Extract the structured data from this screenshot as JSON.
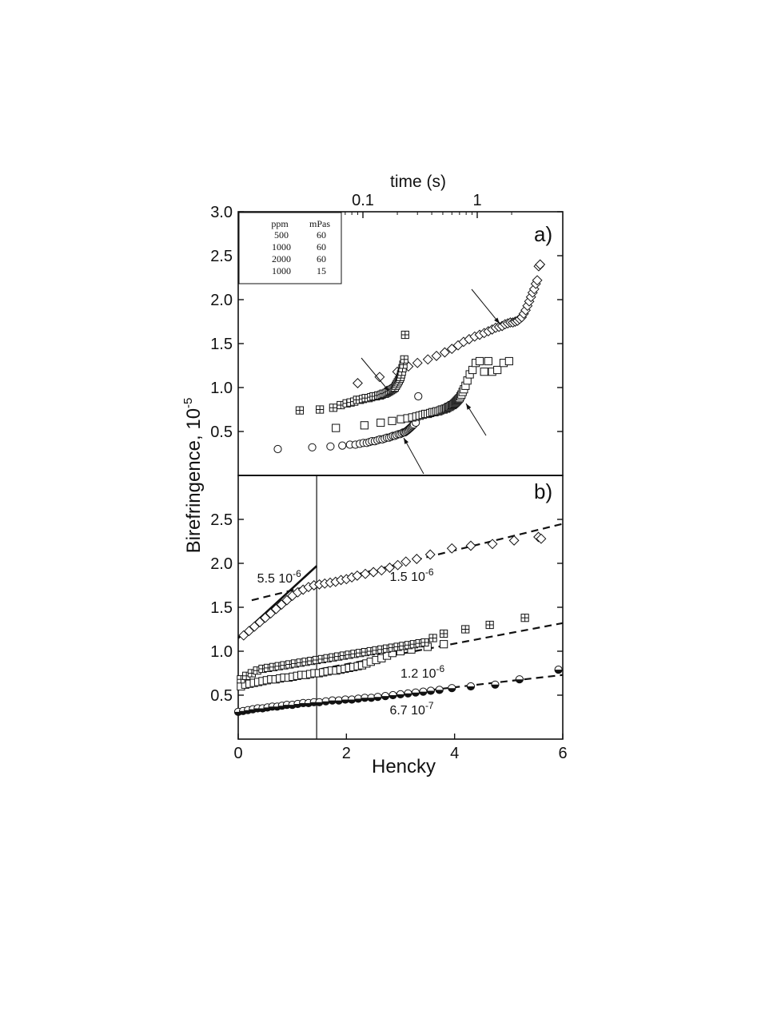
{
  "chart_data": [
    {
      "panel": "a",
      "type": "scatter",
      "panel_label": "a)",
      "top_axis": {
        "label": "time (s)",
        "scale": "log",
        "ticks": [
          {
            "value": 0.1,
            "label": "0.1"
          },
          {
            "value": 1,
            "label": "1"
          }
        ]
      },
      "ylabel": "Birefringence, 10",
      "ylabel_sup": "-5",
      "ylim": [
        0,
        3.0
      ],
      "yticks": [
        {
          "value": 0.5,
          "label": "0.5"
        },
        {
          "value": 1.0,
          "label": "1.0"
        },
        {
          "value": 1.5,
          "label": "1.5"
        },
        {
          "value": 2.0,
          "label": "2.0"
        },
        {
          "value": 2.5,
          "label": "2.5"
        },
        {
          "value": 3.0,
          "label": "3.0"
        }
      ],
      "legend": {
        "placement": "top-left",
        "headers": [
          "ppm",
          "mPas"
        ],
        "entries": [
          {
            "marker": "circle",
            "ppm": "500",
            "mpas": "60"
          },
          {
            "marker": "square",
            "ppm": "1000",
            "mpas": "60"
          },
          {
            "marker": "diamond",
            "ppm": "2000",
            "mpas": "60"
          },
          {
            "marker": "crossed-square",
            "ppm": "1000",
            "mpas": "15"
          }
        ]
      },
      "series": [
        {
          "marker": "circle",
          "x": [
            0.018,
            0.036,
            0.052,
            0.066,
            0.077,
            0.086,
            0.094,
            0.101,
            0.108,
            0.114,
            0.12,
            0.127,
            0.134,
            0.141,
            0.148,
            0.155,
            0.162,
            0.169,
            0.176,
            0.183,
            0.19,
            0.197,
            0.205,
            0.212,
            0.219,
            0.226,
            0.232,
            0.238,
            0.244,
            0.249,
            0.254,
            0.259,
            0.264,
            0.269,
            0.274,
            0.279,
            0.29,
            0.305
          ],
          "y": [
            0.3,
            0.32,
            0.33,
            0.34,
            0.35,
            0.35,
            0.36,
            0.37,
            0.37,
            0.38,
            0.39,
            0.39,
            0.4,
            0.41,
            0.41,
            0.42,
            0.43,
            0.43,
            0.44,
            0.45,
            0.45,
            0.46,
            0.47,
            0.47,
            0.48,
            0.49,
            0.49,
            0.5,
            0.51,
            0.52,
            0.53,
            0.54,
            0.55,
            0.56,
            0.57,
            0.58,
            0.6,
            0.9
          ]
        },
        {
          "marker": "square",
          "x": [
            0.058,
            0.103,
            0.143,
            0.18,
            0.215,
            0.245,
            0.27,
            0.293,
            0.313,
            0.333,
            0.352,
            0.37,
            0.388,
            0.406,
            0.423,
            0.44,
            0.457,
            0.474,
            0.491,
            0.507,
            0.522,
            0.535,
            0.548,
            0.56,
            0.572,
            0.584,
            0.596,
            0.608,
            0.62,
            0.632,
            0.644,
            0.655,
            0.666,
            0.677,
            0.688,
            0.7,
            0.713,
            0.728,
            0.745,
            0.765,
            0.79,
            0.82,
            0.86,
            0.91,
            0.97,
            1.05,
            1.15,
            1.25,
            1.35,
            1.5,
            1.7,
            1.9
          ],
          "y": [
            0.54,
            0.57,
            0.6,
            0.62,
            0.64,
            0.65,
            0.66,
            0.67,
            0.68,
            0.69,
            0.7,
            0.7,
            0.71,
            0.72,
            0.72,
            0.73,
            0.73,
            0.74,
            0.75,
            0.75,
            0.76,
            0.76,
            0.77,
            0.78,
            0.78,
            0.79,
            0.8,
            0.8,
            0.81,
            0.82,
            0.83,
            0.84,
            0.85,
            0.86,
            0.87,
            0.88,
            0.9,
            0.92,
            0.95,
            0.98,
            1.02,
            1.08,
            1.15,
            1.2,
            1.28,
            1.3,
            1.18,
            1.3,
            1.18,
            1.2,
            1.28,
            1.3
          ]
        },
        {
          "marker": "diamond",
          "x": [
            0.09,
            0.14,
            0.2,
            0.25,
            0.3,
            0.37,
            0.44,
            0.52,
            0.6,
            0.68,
            0.76,
            0.85,
            0.95,
            1.05,
            1.15,
            1.25,
            1.35,
            1.45,
            1.55,
            1.65,
            1.75,
            1.85,
            1.95,
            2.05,
            2.15,
            2.25,
            2.35,
            2.45,
            2.55,
            2.65,
            2.75,
            2.85,
            2.95,
            3.05,
            3.15,
            3.25,
            3.35,
            3.45,
            3.55
          ],
          "y": [
            1.05,
            1.12,
            1.18,
            1.24,
            1.28,
            1.32,
            1.36,
            1.4,
            1.44,
            1.48,
            1.52,
            1.55,
            1.58,
            1.6,
            1.62,
            1.64,
            1.66,
            1.68,
            1.69,
            1.7,
            1.72,
            1.73,
            1.74,
            1.74,
            1.75,
            1.76,
            1.78,
            1.8,
            1.84,
            1.88,
            1.93,
            1.98,
            2.03,
            2.08,
            2.12,
            2.18,
            2.22,
            2.38,
            2.4
          ]
        },
        {
          "marker": "crossed-square",
          "x": [
            0.028,
            0.042,
            0.055,
            0.064,
            0.072,
            0.078,
            0.084,
            0.089,
            0.094,
            0.1,
            0.106,
            0.112,
            0.118,
            0.124,
            0.13,
            0.136,
            0.141,
            0.146,
            0.151,
            0.156,
            0.161,
            0.166,
            0.171,
            0.176,
            0.181,
            0.186,
            0.19,
            0.194,
            0.198,
            0.202,
            0.206,
            0.21,
            0.213,
            0.216,
            0.219,
            0.222,
            0.226,
            0.23,
            0.234
          ],
          "y": [
            0.74,
            0.75,
            0.77,
            0.8,
            0.82,
            0.83,
            0.84,
            0.86,
            0.86,
            0.87,
            0.88,
            0.88,
            0.89,
            0.9,
            0.9,
            0.91,
            0.91,
            0.92,
            0.93,
            0.93,
            0.94,
            0.95,
            0.96,
            0.97,
            0.98,
            0.99,
            1.0,
            1.02,
            1.04,
            1.06,
            1.08,
            1.1,
            1.12,
            1.15,
            1.18,
            1.22,
            1.26,
            1.32,
            1.6
          ]
        }
      ]
    },
    {
      "panel": "b",
      "type": "scatter",
      "panel_label": "b)",
      "xlabel": "Hencky",
      "xlim": [
        0,
        6
      ],
      "xticks": [
        {
          "value": 0,
          "label": "0"
        },
        {
          "value": 2,
          "label": "2"
        },
        {
          "value": 4,
          "label": "4"
        },
        {
          "value": 6,
          "label": "6"
        }
      ],
      "ylim": [
        0,
        3.0
      ],
      "yticks": [
        {
          "value": 0.5,
          "label": "0.5"
        },
        {
          "value": 1.0,
          "label": "1.0"
        },
        {
          "value": 1.5,
          "label": "1.5"
        },
        {
          "value": 2.0,
          "label": "2.0"
        },
        {
          "value": 2.5,
          "label": "2.5"
        }
      ],
      "vertical_line_x": 1.45,
      "series": [
        {
          "marker": "half-filled-circle",
          "x": [
            0.0,
            0.09,
            0.18,
            0.27,
            0.36,
            0.45,
            0.54,
            0.63,
            0.72,
            0.81,
            0.9,
            1.0,
            1.1,
            1.2,
            1.3,
            1.4,
            1.5,
            1.62,
            1.74,
            1.86,
            1.98,
            2.1,
            2.22,
            2.34,
            2.46,
            2.58,
            2.72,
            2.86,
            3.0,
            3.14,
            3.28,
            3.42,
            3.56,
            3.72,
            3.95,
            4.3,
            4.75,
            5.2,
            5.92
          ],
          "y": [
            0.31,
            0.32,
            0.33,
            0.34,
            0.35,
            0.35,
            0.36,
            0.37,
            0.37,
            0.38,
            0.39,
            0.39,
            0.4,
            0.41,
            0.41,
            0.42,
            0.42,
            0.43,
            0.44,
            0.44,
            0.45,
            0.45,
            0.46,
            0.47,
            0.47,
            0.48,
            0.49,
            0.5,
            0.51,
            0.52,
            0.53,
            0.54,
            0.55,
            0.56,
            0.58,
            0.6,
            0.62,
            0.68,
            0.79
          ]
        },
        {
          "marker": "square",
          "x": [
            0.05,
            0.13,
            0.21,
            0.29,
            0.37,
            0.45,
            0.53,
            0.61,
            0.69,
            0.77,
            0.85,
            0.93,
            1.01,
            1.09,
            1.17,
            1.25,
            1.33,
            1.41,
            1.49,
            1.57,
            1.65,
            1.73,
            1.81,
            1.89,
            1.97,
            2.05,
            2.13,
            2.21,
            2.29,
            2.37,
            2.45,
            2.55,
            2.65,
            2.75,
            2.85,
            3.0,
            3.2,
            3.5,
            3.8
          ],
          "y": [
            0.6,
            0.62,
            0.63,
            0.64,
            0.65,
            0.66,
            0.67,
            0.68,
            0.68,
            0.69,
            0.7,
            0.7,
            0.71,
            0.72,
            0.73,
            0.73,
            0.74,
            0.75,
            0.75,
            0.76,
            0.77,
            0.78,
            0.78,
            0.79,
            0.8,
            0.81,
            0.82,
            0.83,
            0.84,
            0.86,
            0.88,
            0.9,
            0.92,
            0.95,
            0.98,
            1.0,
            1.02,
            1.05,
            1.08
          ]
        },
        {
          "marker": "diamond",
          "x": [
            0.1,
            0.2,
            0.3,
            0.4,
            0.5,
            0.6,
            0.7,
            0.8,
            0.9,
            1.0,
            1.1,
            1.2,
            1.3,
            1.4,
            1.5,
            1.6,
            1.7,
            1.8,
            1.9,
            2.0,
            2.1,
            2.2,
            2.35,
            2.5,
            2.65,
            2.8,
            2.95,
            3.1,
            3.3,
            3.55,
            3.95,
            4.3,
            4.7,
            5.1,
            5.55,
            5.6
          ],
          "y": [
            1.18,
            1.23,
            1.28,
            1.33,
            1.38,
            1.43,
            1.48,
            1.53,
            1.58,
            1.63,
            1.67,
            1.7,
            1.73,
            1.75,
            1.76,
            1.77,
            1.78,
            1.79,
            1.81,
            1.82,
            1.84,
            1.86,
            1.88,
            1.9,
            1.92,
            1.95,
            1.98,
            2.02,
            2.05,
            2.1,
            2.17,
            2.2,
            2.22,
            2.26,
            2.3,
            2.28
          ]
        },
        {
          "marker": "crossed-square",
          "x": [
            0.05,
            0.15,
            0.25,
            0.35,
            0.45,
            0.55,
            0.65,
            0.75,
            0.85,
            0.95,
            1.05,
            1.15,
            1.25,
            1.35,
            1.45,
            1.55,
            1.65,
            1.75,
            1.85,
            1.95,
            2.05,
            2.15,
            2.25,
            2.35,
            2.45,
            2.55,
            2.65,
            2.75,
            2.85,
            2.95,
            3.05,
            3.15,
            3.25,
            3.35,
            3.45,
            3.6,
            3.8,
            4.2,
            4.65,
            5.3
          ],
          "y": [
            0.68,
            0.72,
            0.75,
            0.78,
            0.8,
            0.81,
            0.82,
            0.83,
            0.84,
            0.85,
            0.86,
            0.87,
            0.88,
            0.89,
            0.9,
            0.91,
            0.92,
            0.93,
            0.94,
            0.95,
            0.96,
            0.97,
            0.98,
            0.99,
            1.0,
            1.01,
            1.02,
            1.03,
            1.04,
            1.05,
            1.06,
            1.07,
            1.08,
            1.09,
            1.1,
            1.15,
            1.2,
            1.25,
            1.3,
            1.38
          ]
        }
      ],
      "fit_lines": [
        {
          "style": "solid",
          "x": [
            0,
            1.45
          ],
          "y": [
            1.15,
            1.97
          ]
        },
        {
          "style": "dashed",
          "x": [
            0.25,
            6.0
          ],
          "y": [
            1.58,
            2.45
          ]
        },
        {
          "style": "dashed",
          "x": [
            0.0,
            6.0
          ],
          "y": [
            0.62,
            1.32
          ]
        },
        {
          "style": "dashed",
          "x": [
            0.0,
            6.0
          ],
          "y": [
            0.31,
            0.73
          ]
        }
      ],
      "annotations": [
        {
          "text": "5.5 10",
          "sup": "-6",
          "x": 0.35,
          "y": 1.78
        },
        {
          "text": "1.5 10",
          "sup": "-6",
          "x": 2.8,
          "y": 1.8
        },
        {
          "text": "1.2 10",
          "sup": "-6",
          "x": 3.0,
          "y": 0.7
        },
        {
          "text": "6.7 10",
          "sup": "-7",
          "x": 2.8,
          "y": 0.28
        }
      ]
    }
  ]
}
